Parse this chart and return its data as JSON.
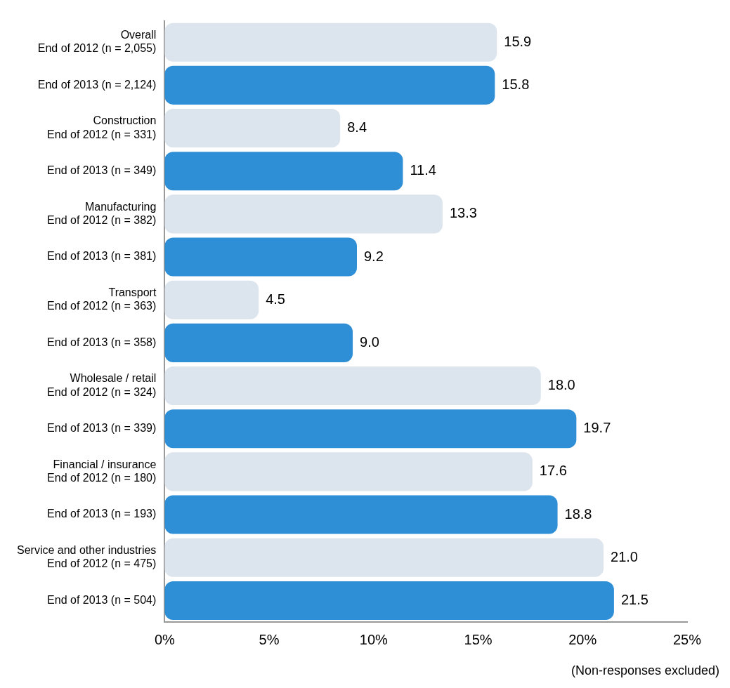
{
  "chart_data": {
    "type": "bar",
    "orientation": "horizontal",
    "categories": [
      "Overall\nEnd of 2012 (n = 2,055)",
      "End of 2013 (n = 2,124)",
      "Construction\nEnd of 2012 (n = 331)",
      "End of 2013 (n = 349)",
      "Manufacturing\nEnd of 2012 (n = 382)",
      "End of 2013 (n = 381)",
      "Transport\nEnd of 2012 (n = 363)",
      "End of 2013 (n = 358)",
      "Wholesale / retail\nEnd of 2012 (n = 324)",
      "End of 2013 (n = 339)",
      "Financial / insurance\nEnd of 2012 (n = 180)",
      "End of 2013 (n = 193)",
      "Service and other industries\nEnd of 2012 (n = 475)",
      "End of 2013 (n = 504)"
    ],
    "values": [
      15.9,
      15.8,
      8.4,
      11.4,
      13.3,
      9.2,
      4.5,
      9.0,
      18.0,
      19.7,
      17.6,
      18.8,
      21.0,
      21.5
    ],
    "value_labels": [
      "15.9",
      "15.8",
      "8.4",
      "11.4",
      "13.3",
      "9.2",
      "4.5",
      "9.0",
      "18.0",
      "19.7",
      "17.6",
      "18.8",
      "21.0",
      "21.5"
    ],
    "colors": [
      "#dce5ee",
      "#2e8fd6",
      "#dce5ee",
      "#2e8fd6",
      "#dce5ee",
      "#2e8fd6",
      "#dce5ee",
      "#2e8fd6",
      "#dce5ee",
      "#2e8fd6",
      "#dce5ee",
      "#2e8fd6",
      "#dce5ee",
      "#2e8fd6"
    ],
    "xlim": [
      0,
      25
    ],
    "xticks": [
      {
        "value": 0,
        "label": "0%"
      },
      {
        "value": 5,
        "label": "5%"
      },
      {
        "value": 10,
        "label": "10%"
      },
      {
        "value": 15,
        "label": "15%"
      },
      {
        "value": 20,
        "label": "20%"
      },
      {
        "value": 25,
        "label": "25%"
      }
    ],
    "grid": false,
    "legend": false,
    "annotations": [
      "(Non-responses excluded)"
    ]
  }
}
